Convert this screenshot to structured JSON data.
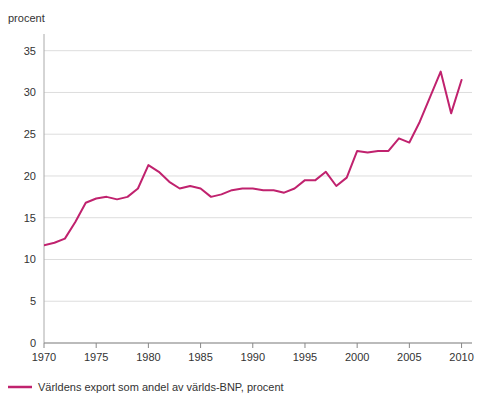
{
  "chart_data": {
    "type": "line",
    "ylabel": "procent",
    "x": [
      1970,
      1971,
      1972,
      1973,
      1974,
      1975,
      1976,
      1977,
      1978,
      1979,
      1980,
      1981,
      1982,
      1983,
      1984,
      1985,
      1986,
      1987,
      1988,
      1989,
      1990,
      1991,
      1992,
      1993,
      1994,
      1995,
      1996,
      1997,
      1998,
      1999,
      2000,
      2001,
      2002,
      2003,
      2004,
      2005,
      2006,
      2007,
      2008,
      2009,
      2010
    ],
    "series": [
      {
        "name": "Världens export som andel av världs-BNP, procent",
        "color": "#c0226e",
        "values": [
          11.7,
          12.0,
          12.5,
          14.5,
          16.8,
          17.3,
          17.5,
          17.2,
          17.5,
          18.5,
          21.3,
          20.5,
          19.3,
          18.5,
          18.8,
          18.5,
          17.5,
          17.8,
          18.3,
          18.5,
          18.5,
          18.3,
          18.3,
          18.0,
          18.5,
          19.5,
          19.5,
          20.5,
          18.8,
          19.8,
          23.0,
          22.8,
          23.0,
          23.0,
          24.5,
          24.0,
          26.5,
          29.5,
          32.5,
          27.5,
          31.5
        ]
      }
    ],
    "xlim": [
      1970,
      2011
    ],
    "xticks": [
      1970,
      1975,
      1980,
      1985,
      1990,
      1995,
      2000,
      2005,
      2010
    ],
    "ylim": [
      0,
      37
    ],
    "yticks": [
      0,
      5,
      10,
      15,
      20,
      25,
      30,
      35
    ],
    "grid": true,
    "legend": "bottom"
  }
}
